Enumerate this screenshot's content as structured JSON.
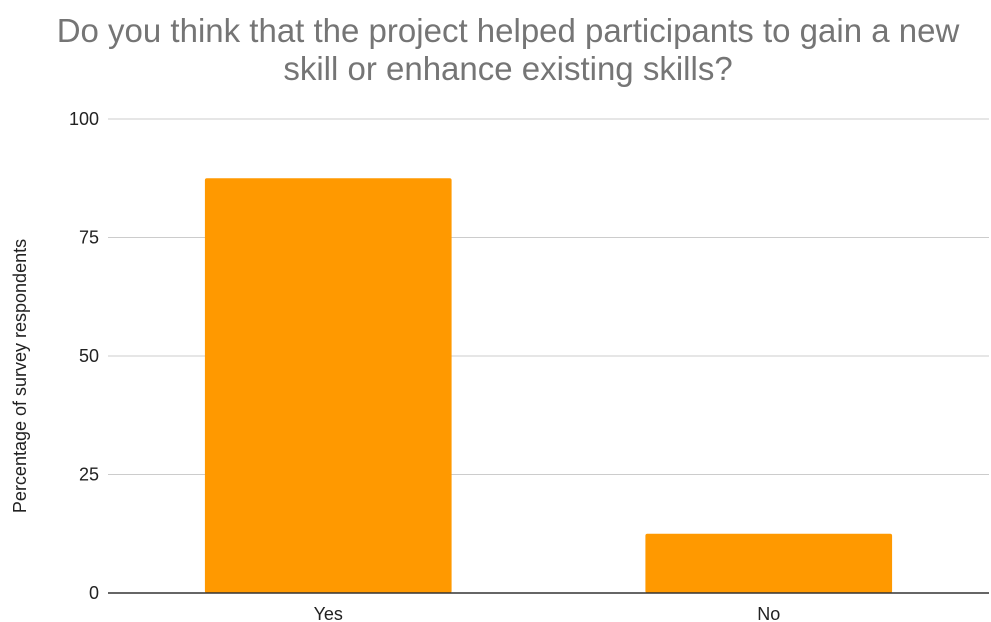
{
  "chart_data": {
    "type": "bar",
    "title_lines": [
      "Do you think that the project helped participants to gain a new",
      "skill or enhance existing skills?"
    ],
    "xlabel": "",
    "ylabel": "Percentage of survey respondents",
    "categories": [
      "Yes",
      "No"
    ],
    "values": [
      87.5,
      12.5
    ],
    "ylim": [
      0,
      100
    ],
    "yticks": [
      0,
      25,
      50,
      75,
      100
    ],
    "grid": true,
    "legend": "none",
    "bar_color": "#ff9900",
    "gridline_color": "#cccccc",
    "baseline_color": "#333333"
  }
}
